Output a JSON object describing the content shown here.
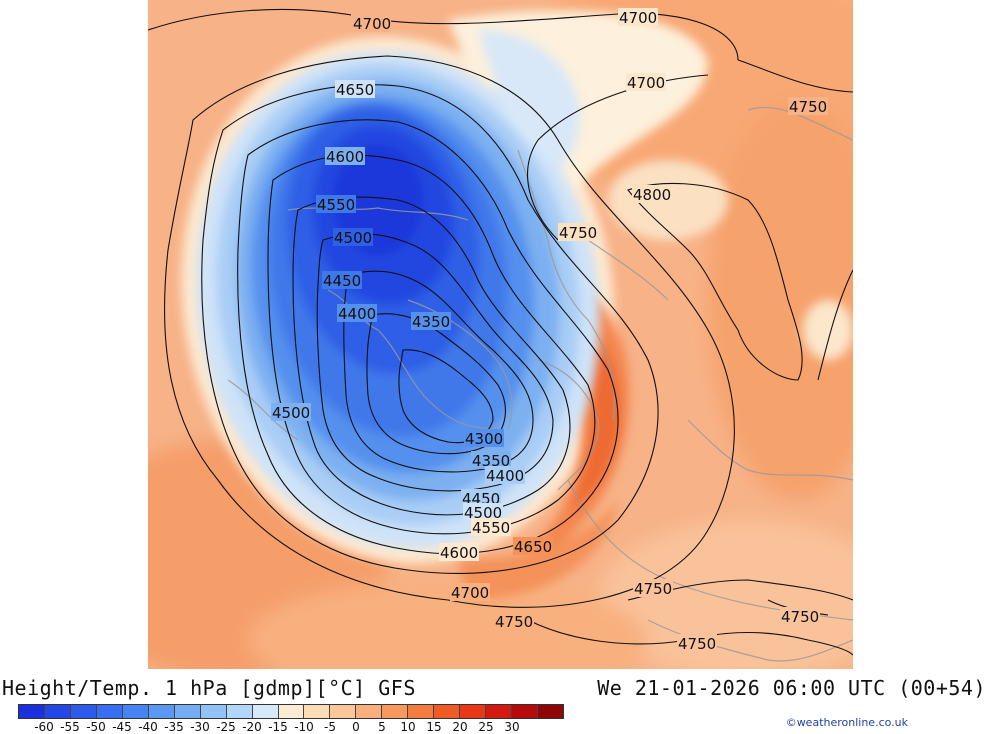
{
  "header": {
    "title": "Height/Temp. 1 hPa [gdmp][°C] GFS",
    "valid_time": "We 21-01-2026 06:00 UTC (00+54)"
  },
  "credit": "©weatheronline.co.uk",
  "legend": {
    "labels": [
      "-60",
      "-55",
      "-50",
      "-45",
      "-40",
      "-35",
      "-30",
      "-25",
      "-20",
      "-15",
      "-10",
      "-5",
      "0",
      "5",
      "10",
      "15",
      "20",
      "25",
      "30"
    ],
    "colors": [
      "#1c2fdc",
      "#2447e6",
      "#2c5bec",
      "#3670f0",
      "#4684f2",
      "#5a98f4",
      "#74acf6",
      "#92c2f8",
      "#b4d6fa",
      "#d6e9fb",
      "#fcebd4",
      "#fddcb8",
      "#fcc79a",
      "#fab07c",
      "#f7985e",
      "#f47c40",
      "#f05a24",
      "#e83818",
      "#d41a10",
      "#b80c0c",
      "#8e0606"
    ]
  },
  "map": {
    "contour_labels": [
      "4700",
      "4700",
      "4700",
      "4750",
      "4650",
      "4600",
      "4550",
      "4500",
      "4450",
      "4400",
      "4350",
      "4800",
      "4750",
      "4500",
      "4300",
      "4350",
      "4400",
      "4450",
      "4500",
      "4550",
      "4600",
      "4650",
      "4700",
      "4750",
      "4750",
      "4750",
      "4750"
    ]
  }
}
